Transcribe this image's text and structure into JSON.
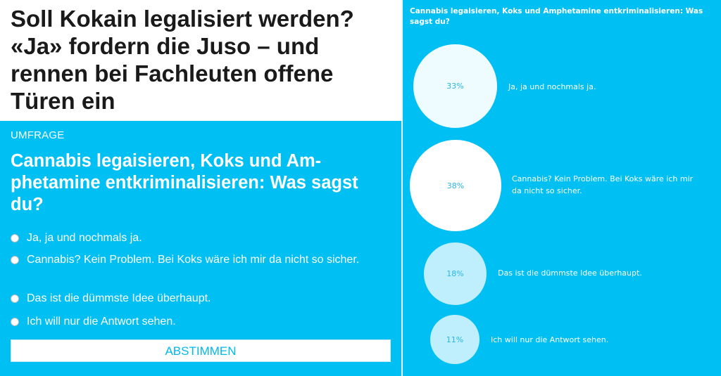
{
  "headline": "Soll Kokain legalisiert werden? «Ja» fordern die Juso – und rennen bei Fachleuten offene Türen ein",
  "poll": {
    "kicker": "UMFRAGE",
    "question": "Cannabis legaisieren, Koks und Am­phetamine entkriminalisieren: Was sagst du?",
    "options": [
      {
        "label": "Ja, ja und nochmals ja."
      },
      {
        "label": "Cannabis? Kein Problem. Bei Koks wäre ich mir da nicht so si­cher."
      },
      {
        "label": "Das ist die dümmste Idee überhaupt."
      },
      {
        "label": "Ich will nur die Antwort sehen."
      }
    ],
    "submit_label": "ABSTIMMEN"
  },
  "results": {
    "title": "Cannabis legaisieren, Koks und Amphetamine entkriminalisieren: Was sagst du?",
    "items": [
      {
        "percent": 33,
        "percent_label": "33%",
        "label": "Ja, ja und nochmals ja.",
        "bubble_color": "#eefbff"
      },
      {
        "percent": 38,
        "percent_label": "38%",
        "label": "Cannabis? Kein Problem. Bei Koks wäre ich mir da nicht so sicher.",
        "bubble_color": "#ffffff"
      },
      {
        "percent": 18,
        "percent_label": "18%",
        "label": "Das ist die dümmste Idee überhaupt.",
        "bubble_color": "#bfeefc"
      },
      {
        "percent": 11,
        "percent_label": "11%",
        "label": "Ich will nur die Antwort sehen.",
        "bubble_color": "#bfeefc"
      }
    ]
  },
  "colors": {
    "accent": "#00bff2",
    "button_text": "#00b8ec",
    "headline_text": "#1a1a1a"
  }
}
